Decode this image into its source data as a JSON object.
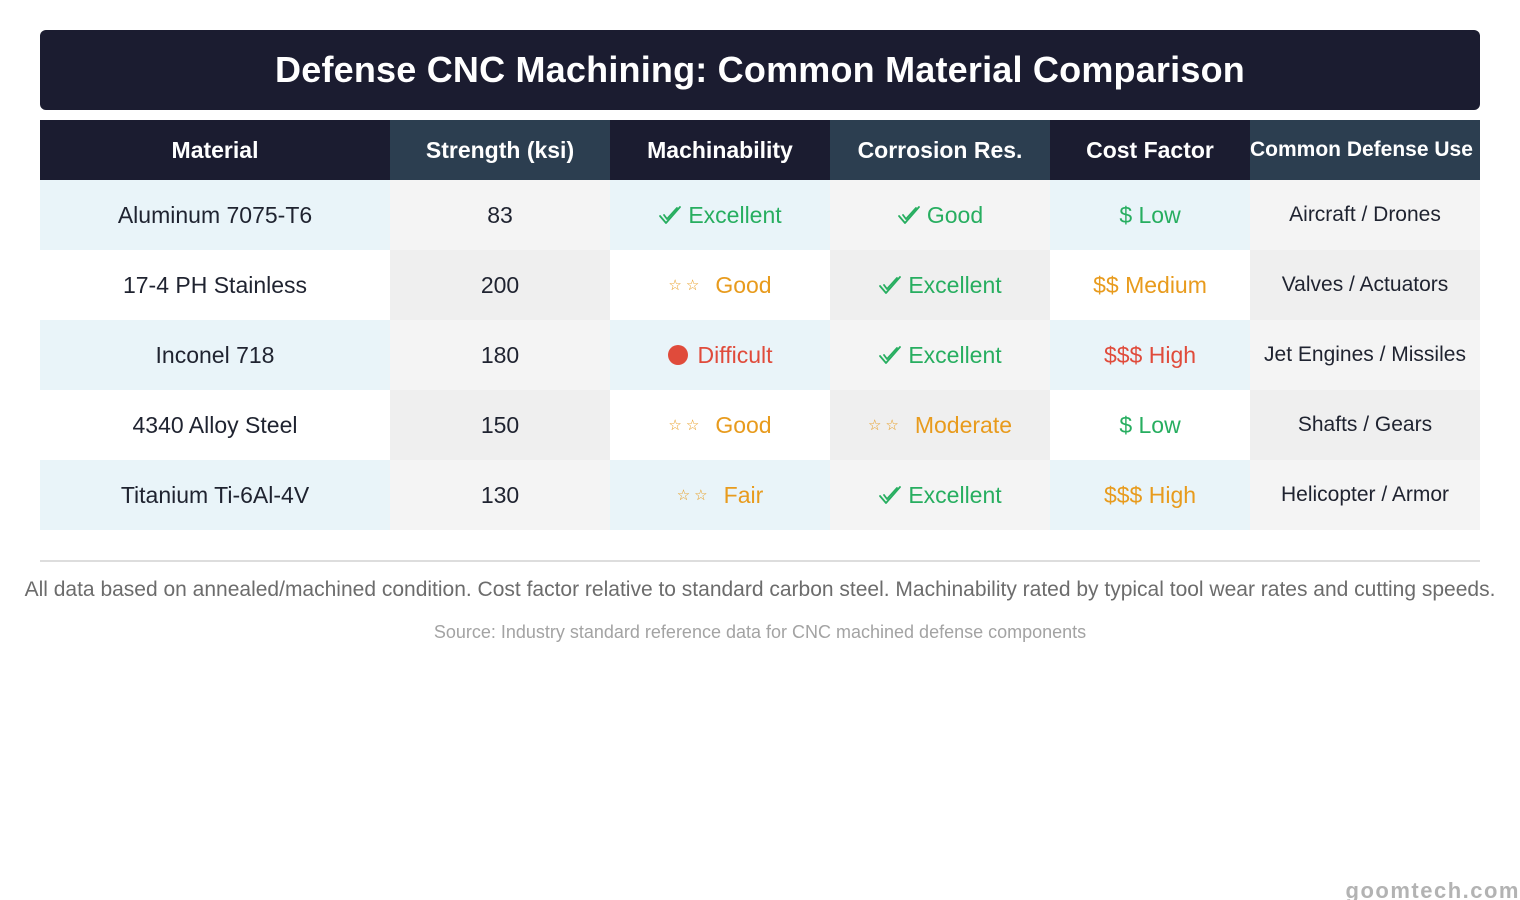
{
  "title": "Defense CNC Machining: Common Material Comparison",
  "colors": {
    "header_dark": "#1b1c30",
    "header_slate": "#2c3e50",
    "good": "#27ae60",
    "medium": "#e89b1d",
    "bad": "#e04b3b"
  },
  "table": {
    "headers": [
      "Material",
      "Strength (ksi)",
      "Machinability",
      "Corrosion Res.",
      "Cost Factor",
      "Common Defense Use"
    ],
    "rows": [
      {
        "material": "Aluminum 7075-T6",
        "strength": "83",
        "machinability": {
          "icon": "check-icon",
          "text": "Excellent",
          "tone": "green"
        },
        "corrosion": {
          "icon": "check-icon",
          "text": "Good",
          "tone": "green"
        },
        "cost": {
          "text": "$ Low",
          "tone": "green"
        },
        "use": "Aircraft / Drones"
      },
      {
        "material": "17-4 PH Stainless",
        "strength": "200",
        "machinability": {
          "icon": "stars-icon",
          "text": "Good",
          "tone": "orange"
        },
        "corrosion": {
          "icon": "check-icon",
          "text": "Excellent",
          "tone": "green"
        },
        "cost": {
          "text": "$$ Medium",
          "tone": "orange"
        },
        "use": "Valves / Actuators"
      },
      {
        "material": "Inconel 718",
        "strength": "180",
        "machinability": {
          "icon": "red-dot-icon",
          "text": "Difficult",
          "tone": "red"
        },
        "corrosion": {
          "icon": "check-icon",
          "text": "Excellent",
          "tone": "green"
        },
        "cost": {
          "text": "$$$ High",
          "tone": "red"
        },
        "use": "Jet Engines / Missiles"
      },
      {
        "material": "4340 Alloy Steel",
        "strength": "150",
        "machinability": {
          "icon": "stars-icon",
          "text": "Good",
          "tone": "orange"
        },
        "corrosion": {
          "icon": "stars-icon",
          "text": "Moderate",
          "tone": "orange"
        },
        "cost": {
          "text": "$ Low",
          "tone": "green"
        },
        "use": "Shafts / Gears"
      },
      {
        "material": "Titanium Ti-6Al-4V",
        "strength": "130",
        "machinability": {
          "icon": "stars-icon",
          "text": "Fair",
          "tone": "orange"
        },
        "corrosion": {
          "icon": "check-icon",
          "text": "Excellent",
          "tone": "green"
        },
        "cost": {
          "text": "$$$ High",
          "tone": "orange"
        },
        "use": "Helicopter / Armor"
      }
    ]
  },
  "footnote": "All data based on annealed/machined condition. Cost factor relative to standard carbon steel. Machinability rated by typical tool wear rates and cutting speeds.",
  "source": "Source: Industry standard reference data for CNC machined defense components",
  "watermark": "goomtech.com"
}
